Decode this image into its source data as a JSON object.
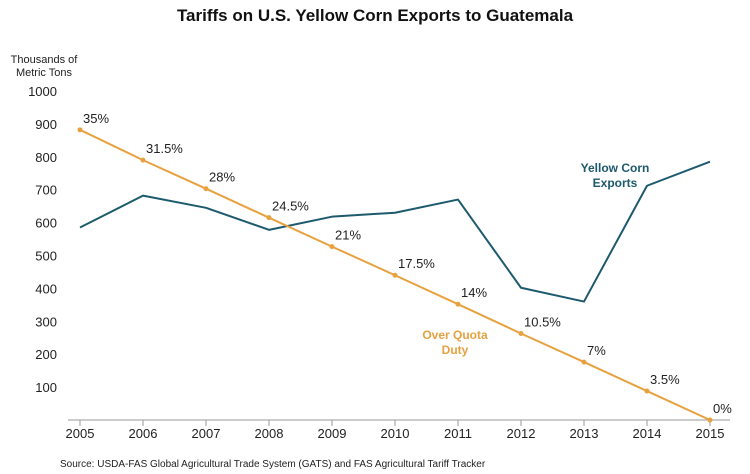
{
  "chart_data": {
    "type": "line",
    "title": "Tariffs on U.S. Yellow Corn Exports to Guatemala",
    "ylabel_lines": [
      "Thousands of",
      "Metric Tons"
    ],
    "xlabel": "",
    "x": [
      "2005",
      "2006",
      "2007",
      "2008",
      "2009",
      "2010",
      "2011",
      "2012",
      "2013",
      "2014",
      "2015"
    ],
    "ylim": [
      0,
      1000
    ],
    "yticks": [
      100,
      200,
      300,
      400,
      500,
      600,
      700,
      800,
      900,
      1000
    ],
    "grid": false,
    "series": [
      {
        "name_lines": [
          "Yellow Corn",
          "Exports"
        ],
        "color": "#1d5a6e",
        "values": [
          585,
          682,
          645,
          578,
          618,
          630,
          670,
          402,
          360,
          712,
          785
        ],
        "data_labels": []
      },
      {
        "name_lines": [
          "Over Quota",
          "Duty"
        ],
        "color": "#e8a13f",
        "values": [
          882,
          790,
          703,
          615,
          527,
          440,
          352,
          263,
          176,
          88,
          0
        ],
        "data_labels": [
          "35%",
          "31.5%",
          "28%",
          "24.5%",
          "21%",
          "17.5%",
          "14%",
          "10.5%",
          "7%",
          "3.5%",
          "0%"
        ]
      }
    ],
    "source": "Source:  USDA-FAS Global Agricultural Trade System (GATS) and FAS Agricultural Tariff Tracker"
  }
}
